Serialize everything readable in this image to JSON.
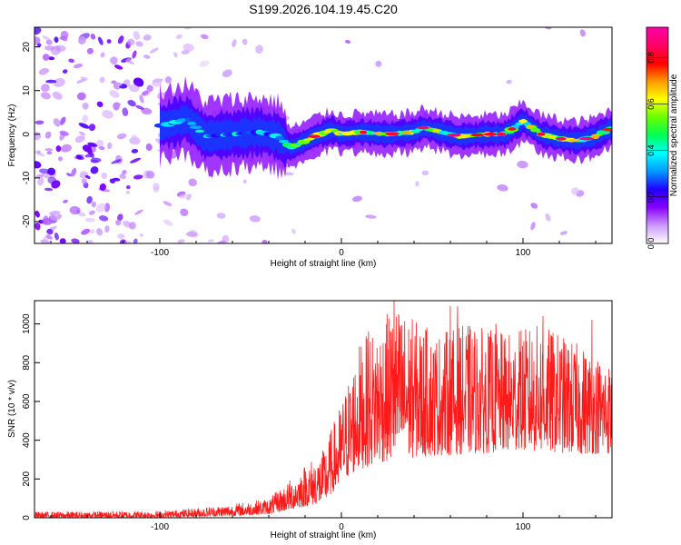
{
  "figure_title": "S199.2026.104.19.45.C20",
  "chart_data": [
    {
      "type": "heatmap",
      "title": "S199.2026.104.19.45.C20",
      "xlabel": "Height of straight line (km)",
      "ylabel": "Frequency (Hz)",
      "xlim": [
        -169,
        149
      ],
      "ylim": [
        -25,
        24.5
      ],
      "x_ticks": [
        -100,
        0,
        100
      ],
      "y_ticks": [
        -20,
        -10,
        0,
        10,
        20
      ],
      "ridge_center_hz": [
        {
          "x": -98,
          "y": 2
        },
        {
          "x": -85,
          "y": 3.5
        },
        {
          "x": -75,
          "y": -0.5
        },
        {
          "x": -60,
          "y": 0
        },
        {
          "x": -45,
          "y": 0.5
        },
        {
          "x": -35,
          "y": -0.5
        },
        {
          "x": -28,
          "y": -3
        },
        {
          "x": -22,
          "y": -2
        },
        {
          "x": -15,
          "y": -0.5
        },
        {
          "x": -5,
          "y": 1
        },
        {
          "x": 0,
          "y": 0
        },
        {
          "x": 10,
          "y": 0.5
        },
        {
          "x": 25,
          "y": 0
        },
        {
          "x": 40,
          "y": 0.5
        },
        {
          "x": 45,
          "y": 1.5
        },
        {
          "x": 55,
          "y": 0.5
        },
        {
          "x": 65,
          "y": -0.5
        },
        {
          "x": 80,
          "y": 0
        },
        {
          "x": 90,
          "y": 0
        },
        {
          "x": 100,
          "y": 3
        },
        {
          "x": 110,
          "y": 0
        },
        {
          "x": 120,
          "y": -1
        },
        {
          "x": 130,
          "y": -1.5
        },
        {
          "x": 140,
          "y": -0.5
        },
        {
          "x": 149,
          "y": 1.5
        }
      ],
      "colorbar": {
        "label": "Normalized spectral amplitude",
        "range": [
          0,
          0.93
        ],
        "ticks": [
          0.0,
          0.2,
          0.4,
          0.6,
          0.8
        ],
        "colors": [
          "#ffffff",
          "#cc99ff",
          "#8800ff",
          "#2200ff",
          "#0099ff",
          "#00ffff",
          "#00ff55",
          "#66ff00",
          "#ffff00",
          "#ff9900",
          "#ff0000",
          "#ff0066",
          "#ff00aa"
        ]
      }
    },
    {
      "type": "line",
      "xlabel": "Height of straight line (km)",
      "ylabel": "SNR (10 * v/v)",
      "xlim": [
        -169,
        149
      ],
      "ylim": [
        0,
        1120
      ],
      "x_ticks": [
        -100,
        0,
        100
      ],
      "y_ticks": [
        0,
        200,
        400,
        600,
        800,
        1000
      ],
      "color": "#ff1a1a",
      "series": [
        {
          "name": "SNR",
          "envelope": [
            {
              "x": -169,
              "low": 0,
              "high": 30
            },
            {
              "x": -100,
              "low": 2,
              "high": 35
            },
            {
              "x": -80,
              "low": 5,
              "high": 50
            },
            {
              "x": -60,
              "low": 10,
              "high": 70
            },
            {
              "x": -40,
              "low": 20,
              "high": 100
            },
            {
              "x": -30,
              "low": 40,
              "high": 180
            },
            {
              "x": -20,
              "low": 60,
              "high": 280
            },
            {
              "x": -10,
              "low": 80,
              "high": 350
            },
            {
              "x": 0,
              "low": 180,
              "high": 600
            },
            {
              "x": 10,
              "low": 250,
              "high": 900
            },
            {
              "x": 20,
              "low": 280,
              "high": 1000
            },
            {
              "x": 30,
              "low": 300,
              "high": 1100
            },
            {
              "x": 50,
              "low": 320,
              "high": 950
            },
            {
              "x": 70,
              "low": 330,
              "high": 1000
            },
            {
              "x": 90,
              "low": 340,
              "high": 950
            },
            {
              "x": 110,
              "low": 340,
              "high": 1000
            },
            {
              "x": 130,
              "low": 330,
              "high": 900
            },
            {
              "x": 149,
              "low": 330,
              "high": 800
            }
          ],
          "peaks": [
            {
              "x": 29,
              "y": 1120
            },
            {
              "x": 60,
              "y": 1090
            },
            {
              "x": 64,
              "y": 1090
            },
            {
              "x": 15,
              "y": 960
            },
            {
              "x": 47,
              "y": 980
            },
            {
              "x": 111,
              "y": 1040
            },
            {
              "x": 138,
              "y": 1020
            },
            {
              "x": 85,
              "y": 1000
            },
            {
              "x": 98,
              "y": 960
            }
          ]
        }
      ]
    }
  ]
}
